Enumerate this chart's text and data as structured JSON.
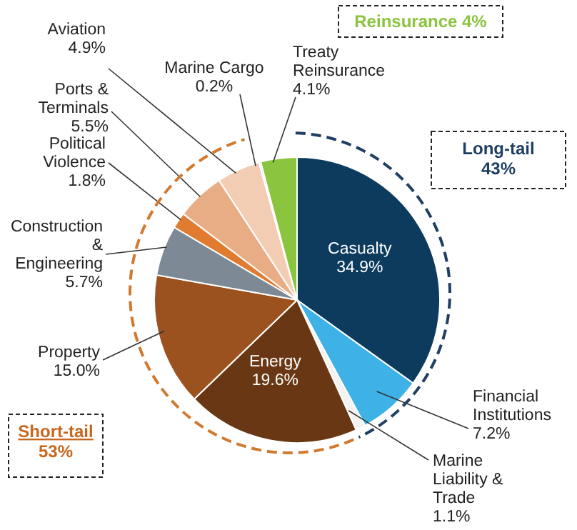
{
  "chart_data": {
    "type": "pie",
    "categories": [
      "Casualty",
      "Financial Institutions",
      "Marine Liability & Trade",
      "Energy",
      "Property",
      "Construction & Engineering",
      "Political Violence",
      "Ports & Terminals",
      "Aviation",
      "Marine Cargo",
      "Treaty Reinsurance"
    ],
    "values": [
      34.9,
      7.2,
      1.1,
      19.6,
      15.0,
      5.7,
      1.8,
      5.5,
      4.9,
      0.2,
      4.1
    ],
    "colors": [
      "#0d3b5e",
      "#3eb1e6",
      "#f2f2f2",
      "#6a3714",
      "#9c521f",
      "#7d8a96",
      "#e07b30",
      "#e8ad85",
      "#f3cdb3",
      "#c9c9c9",
      "#8bc43f"
    ],
    "value_labels": [
      "34.9%",
      "7.2%",
      "1.1%",
      "19.6%",
      "15.0%",
      "5.7%",
      "1.8%",
      "5.5%",
      "4.9%",
      "0.2%",
      "4.1%"
    ],
    "annotations": [
      "Reinsurance 4%",
      "Long-tail 43%",
      "Short-tail 53%"
    ]
  }
}
